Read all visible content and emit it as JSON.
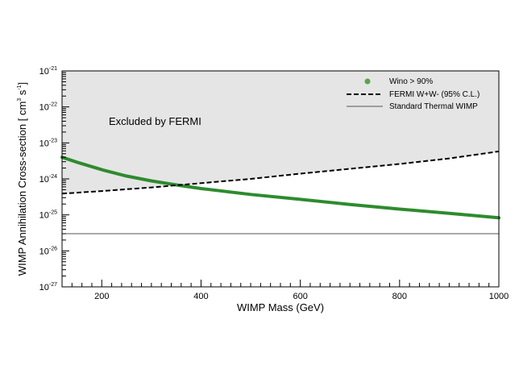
{
  "chart_data": {
    "type": "line",
    "title": "",
    "xlabel": "WIMP Mass (GeV)",
    "ylabel_main": "WIMP Annihilation Cross-section [ cm",
    "ylabel_exp1": "3",
    "ylabel_mid": " s",
    "ylabel_exp2": "-1",
    "ylabel_end": "]",
    "xlim": [
      120,
      1000
    ],
    "ylim_log10": [
      -27,
      -21
    ],
    "y_scale": "log",
    "x_ticks": [
      200,
      400,
      600,
      800,
      1000
    ],
    "x_tick_labels": [
      "200",
      "400",
      "600",
      "800",
      "1000"
    ],
    "y_ticks_log10": [
      -21,
      -22,
      -23,
      -24,
      -25,
      -26,
      -27
    ],
    "y_tick_base": "10",
    "y_tick_exponents": [
      "-21",
      "-22",
      "-23",
      "-24",
      "-25",
      "-26",
      "-27"
    ],
    "annotation": "Excluded by FERMI",
    "series": [
      {
        "name": "Wino > 90%",
        "style": "band",
        "color": "#2e8b2e",
        "x": [
          120,
          150,
          200,
          250,
          300,
          350,
          400,
          500,
          600,
          700,
          800,
          900,
          1000
        ],
        "y": [
          4e-24,
          2.9e-24,
          1.8e-24,
          1.2e-24,
          8.8e-25,
          6.8e-25,
          5.4e-25,
          3.7e-25,
          2.7e-25,
          1.95e-25,
          1.45e-25,
          1.1e-25,
          8.3e-26
        ]
      },
      {
        "name": "FERMI W+W- (95% C.L.)",
        "style": "dashed",
        "color": "#000000",
        "x": [
          120,
          200,
          300,
          400,
          500,
          600,
          700,
          800,
          900,
          1000
        ],
        "y": [
          3.9e-25,
          4.6e-25,
          5.8e-25,
          7.6e-25,
          1e-24,
          1.4e-24,
          1.9e-24,
          2.6e-24,
          3.7e-24,
          5.8e-24
        ]
      },
      {
        "name": "Standard Thermal WIMP",
        "style": "solid",
        "color": "#555555",
        "x": [
          120,
          1000
        ],
        "y": [
          3e-26,
          3e-26
        ]
      }
    ],
    "legend_position": "top-right",
    "excluded_region_color": "#e5e5e5"
  }
}
